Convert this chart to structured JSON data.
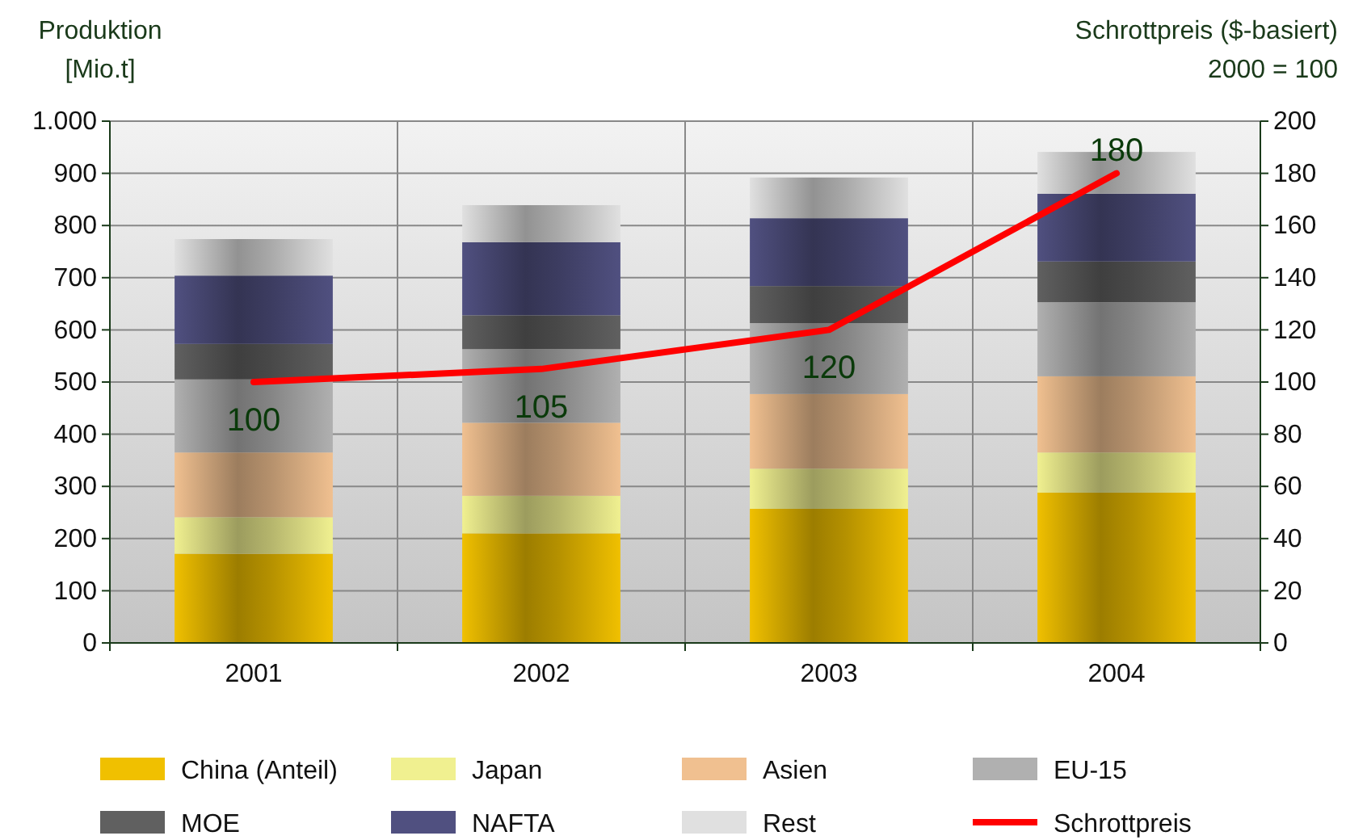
{
  "chart_data": {
    "type": "bar",
    "stacked": true,
    "categories": [
      "2001",
      "2002",
      "2003",
      "2004"
    ],
    "ylabel": "Produktion\n[Mio.t]",
    "y2label": "Schrottpreis ($-basiert)\n2000 = 100",
    "ylim": [
      0,
      1000
    ],
    "yticks": [
      0,
      100,
      200,
      300,
      400,
      500,
      600,
      700,
      800,
      900,
      {
        "value": 1000,
        "label": "1.000"
      }
    ],
    "y2lim": [
      0,
      200
    ],
    "y2ticks": [
      0,
      20,
      40,
      60,
      80,
      100,
      120,
      140,
      160,
      180,
      200
    ],
    "grid": true,
    "legend": "bottom",
    "series": [
      {
        "name": "China (Anteil)",
        "color": "#f0c000",
        "values": [
          171,
          210,
          257,
          288
        ]
      },
      {
        "name": "Japan",
        "color": "#f0f090",
        "values": [
          70,
          72,
          77,
          77
        ]
      },
      {
        "name": "Asien",
        "color": "#f0c090",
        "values": [
          124,
          140,
          143,
          146
        ]
      },
      {
        "name": "EU-15",
        "color": "#b0b0b0",
        "values": [
          140,
          141,
          136,
          142
        ]
      },
      {
        "name": "MOE",
        "color": "#606060",
        "values": [
          68,
          65,
          71,
          78
        ]
      },
      {
        "name": "NAFTA",
        "color": "#505080",
        "values": [
          131,
          140,
          130,
          130
        ]
      },
      {
        "name": "Rest",
        "color": "#e0e0e0",
        "values": [
          70,
          71,
          78,
          80
        ]
      },
      {
        "name": "Schrottpreis",
        "type": "line",
        "axis": "y2",
        "color": "#ff0000",
        "values": [
          100,
          105,
          120,
          180
        ],
        "value_labels": [
          "100",
          "105",
          "120",
          "180"
        ]
      }
    ]
  }
}
